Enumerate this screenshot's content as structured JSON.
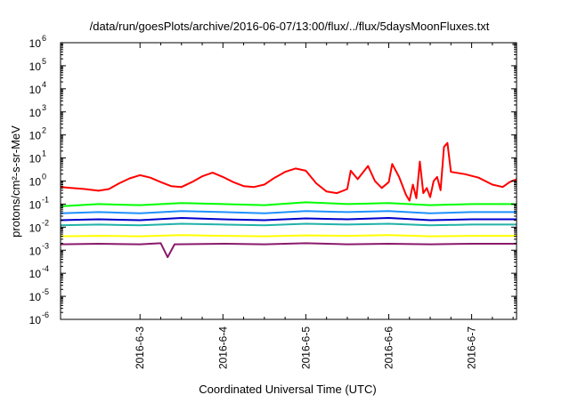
{
  "chart_data": {
    "type": "line",
    "title": "/data/run/goesPlots/archive/2016-06-07/13:00/flux/../flux/5daysMoonFluxes.txt",
    "xlabel": "Coordinated Universal Time (UTC)",
    "ylabel": "protons/cm²-s-sr-MeV",
    "yscale": "log",
    "ylim": [
      1e-06,
      1000000.0
    ],
    "xlim": [
      "2016-06-02 01:00",
      "2016-06-07 13:00"
    ],
    "grid": false,
    "y_ticks": [
      {
        "value": 1e-06,
        "base": "10",
        "exp": "-6"
      },
      {
        "value": 1e-05,
        "base": "10",
        "exp": "-5"
      },
      {
        "value": 0.0001,
        "base": "10",
        "exp": "-4"
      },
      {
        "value": 0.001,
        "base": "10",
        "exp": "-3"
      },
      {
        "value": 0.01,
        "base": "10",
        "exp": "-2"
      },
      {
        "value": 0.1,
        "base": "10",
        "exp": "-1"
      },
      {
        "value": 1,
        "base": "10",
        "exp": "0"
      },
      {
        "value": 10,
        "base": "10",
        "exp": "1"
      },
      {
        "value": 100,
        "base": "10",
        "exp": "2"
      },
      {
        "value": 1000,
        "base": "10",
        "exp": "3"
      },
      {
        "value": 10000,
        "base": "10",
        "exp": "4"
      },
      {
        "value": 100000,
        "base": "10",
        "exp": "5"
      },
      {
        "value": 1000000,
        "base": "10",
        "exp": "6"
      }
    ],
    "x_ticks": [
      "2016-6-3",
      "2016-6-4",
      "2016-6-5",
      "2016-6-6",
      "2016-6-7"
    ],
    "series": [
      {
        "color": "#ff0000",
        "points": [
          [
            "2016-06-02 01:00",
            0.55
          ],
          [
            "2016-06-02 04:00",
            0.5
          ],
          [
            "2016-06-02 08:00",
            0.45
          ],
          [
            "2016-06-02 12:00",
            0.38
          ],
          [
            "2016-06-02 15:00",
            0.45
          ],
          [
            "2016-06-02 18:00",
            0.8
          ],
          [
            "2016-06-02 21:00",
            1.3
          ],
          [
            "2016-06-03 00:00",
            1.8
          ],
          [
            "2016-06-03 03:00",
            1.4
          ],
          [
            "2016-06-03 06:00",
            0.9
          ],
          [
            "2016-06-03 09:00",
            0.6
          ],
          [
            "2016-06-03 12:00",
            0.55
          ],
          [
            "2016-06-03 15:00",
            0.9
          ],
          [
            "2016-06-03 18:00",
            1.6
          ],
          [
            "2016-06-03 21:00",
            2.3
          ],
          [
            "2016-06-04 00:00",
            1.5
          ],
          [
            "2016-06-04 03:00",
            0.9
          ],
          [
            "2016-06-04 06:00",
            0.6
          ],
          [
            "2016-06-04 09:00",
            0.55
          ],
          [
            "2016-06-04 12:00",
            0.7
          ],
          [
            "2016-06-04 15:00",
            1.4
          ],
          [
            "2016-06-04 18:00",
            2.5
          ],
          [
            "2016-06-04 21:00",
            3.5
          ],
          [
            "2016-06-05 00:00",
            2.8
          ],
          [
            "2016-06-05 03:00",
            0.8
          ],
          [
            "2016-06-05 06:00",
            0.35
          ],
          [
            "2016-06-05 09:00",
            0.3
          ],
          [
            "2016-06-05 12:00",
            0.45
          ],
          [
            "2016-06-05 13:00",
            2.8
          ],
          [
            "2016-06-05 15:00",
            1.2
          ],
          [
            "2016-06-05 18:00",
            4.5
          ],
          [
            "2016-06-05 20:00",
            1.0
          ],
          [
            "2016-06-05 22:00",
            0.5
          ],
          [
            "2016-06-06 00:00",
            0.9
          ],
          [
            "2016-06-06 01:00",
            5.5
          ],
          [
            "2016-06-06 03:00",
            1.5
          ],
          [
            "2016-06-06 05:00",
            0.25
          ],
          [
            "2016-06-06 06:00",
            0.14
          ],
          [
            "2016-06-06 07:00",
            0.7
          ],
          [
            "2016-06-06 08:00",
            0.18
          ],
          [
            "2016-06-06 09:00",
            7.0
          ],
          [
            "2016-06-06 10:00",
            0.3
          ],
          [
            "2016-06-06 11:00",
            0.5
          ],
          [
            "2016-06-06 12:00",
            0.2
          ],
          [
            "2016-06-06 13:00",
            1.0
          ],
          [
            "2016-06-06 14:00",
            1.5
          ],
          [
            "2016-06-06 15:00",
            0.4
          ],
          [
            "2016-06-06 16:00",
            30
          ],
          [
            "2016-06-06 17:00",
            45
          ],
          [
            "2016-06-06 18:00",
            2.5
          ],
          [
            "2016-06-06 22:00",
            2.0
          ],
          [
            "2016-06-07 02:00",
            1.4
          ],
          [
            "2016-06-07 06:00",
            0.7
          ],
          [
            "2016-06-07 09:00",
            0.55
          ],
          [
            "2016-06-07 11:00",
            0.9
          ],
          [
            "2016-06-07 13:00",
            1.2
          ]
        ]
      },
      {
        "color": "#00ff00",
        "points": [
          [
            "2016-06-02 01:00",
            0.08
          ],
          [
            "2016-06-02 12:00",
            0.1
          ],
          [
            "2016-06-03 00:00",
            0.09
          ],
          [
            "2016-06-03 12:00",
            0.11
          ],
          [
            "2016-06-04 00:00",
            0.1
          ],
          [
            "2016-06-04 12:00",
            0.09
          ],
          [
            "2016-06-05 00:00",
            0.12
          ],
          [
            "2016-06-05 12:00",
            0.1
          ],
          [
            "2016-06-06 00:00",
            0.11
          ],
          [
            "2016-06-06 12:00",
            0.09
          ],
          [
            "2016-06-07 00:00",
            0.1
          ],
          [
            "2016-06-07 13:00",
            0.1
          ]
        ]
      },
      {
        "color": "#1e90ff",
        "points": [
          [
            "2016-06-02 01:00",
            0.04
          ],
          [
            "2016-06-02 12:00",
            0.045
          ],
          [
            "2016-06-03 00:00",
            0.04
          ],
          [
            "2016-06-03 12:00",
            0.05
          ],
          [
            "2016-06-04 00:00",
            0.045
          ],
          [
            "2016-06-04 12:00",
            0.04
          ],
          [
            "2016-06-05 00:00",
            0.05
          ],
          [
            "2016-06-05 12:00",
            0.045
          ],
          [
            "2016-06-06 00:00",
            0.05
          ],
          [
            "2016-06-06 12:00",
            0.04
          ],
          [
            "2016-06-07 00:00",
            0.045
          ],
          [
            "2016-06-07 13:00",
            0.045
          ]
        ]
      },
      {
        "color": "#0000cd",
        "points": [
          [
            "2016-06-02 01:00",
            0.02
          ],
          [
            "2016-06-02 12:00",
            0.022
          ],
          [
            "2016-06-03 00:00",
            0.02
          ],
          [
            "2016-06-03 12:00",
            0.025
          ],
          [
            "2016-06-04 00:00",
            0.022
          ],
          [
            "2016-06-04 12:00",
            0.02
          ],
          [
            "2016-06-05 00:00",
            0.024
          ],
          [
            "2016-06-05 12:00",
            0.022
          ],
          [
            "2016-06-06 00:00",
            0.025
          ],
          [
            "2016-06-06 12:00",
            0.02
          ],
          [
            "2016-06-07 00:00",
            0.022
          ],
          [
            "2016-06-07 13:00",
            0.022
          ]
        ]
      },
      {
        "color": "#20b2aa",
        "points": [
          [
            "2016-06-02 01:00",
            0.012
          ],
          [
            "2016-06-02 12:00",
            0.013
          ],
          [
            "2016-06-03 00:00",
            0.012
          ],
          [
            "2016-06-03 12:00",
            0.014
          ],
          [
            "2016-06-04 00:00",
            0.013
          ],
          [
            "2016-06-04 12:00",
            0.012
          ],
          [
            "2016-06-05 00:00",
            0.014
          ],
          [
            "2016-06-05 12:00",
            0.013
          ],
          [
            "2016-06-06 00:00",
            0.014
          ],
          [
            "2016-06-06 12:00",
            0.012
          ],
          [
            "2016-06-07 00:00",
            0.013
          ],
          [
            "2016-06-07 13:00",
            0.013
          ]
        ]
      },
      {
        "color": "#ffff00",
        "points": [
          [
            "2016-06-02 01:00",
            0.004
          ],
          [
            "2016-06-02 12:00",
            0.0042
          ],
          [
            "2016-06-03 00:00",
            0.004
          ],
          [
            "2016-06-03 12:00",
            0.0045
          ],
          [
            "2016-06-04 00:00",
            0.0042
          ],
          [
            "2016-06-04 12:00",
            0.004
          ],
          [
            "2016-06-05 00:00",
            0.0044
          ],
          [
            "2016-06-05 12:00",
            0.0042
          ],
          [
            "2016-06-06 00:00",
            0.0045
          ],
          [
            "2016-06-06 12:00",
            0.004
          ],
          [
            "2016-06-07 00:00",
            0.0042
          ],
          [
            "2016-06-07 13:00",
            0.0042
          ]
        ]
      },
      {
        "color": "#8b1a6b",
        "points": [
          [
            "2016-06-02 01:00",
            0.0018
          ],
          [
            "2016-06-02 12:00",
            0.0019
          ],
          [
            "2016-06-03 00:00",
            0.0018
          ],
          [
            "2016-06-03 06:00",
            0.002
          ],
          [
            "2016-06-03 08:00",
            0.0005
          ],
          [
            "2016-06-03 10:00",
            0.0018
          ],
          [
            "2016-06-04 00:00",
            0.0019
          ],
          [
            "2016-06-04 12:00",
            0.0018
          ],
          [
            "2016-06-05 00:00",
            0.002
          ],
          [
            "2016-06-05 12:00",
            0.0018
          ],
          [
            "2016-06-06 00:00",
            0.0019
          ],
          [
            "2016-06-06 12:00",
            0.0018
          ],
          [
            "2016-06-07 00:00",
            0.0019
          ],
          [
            "2016-06-07 13:00",
            0.0019
          ]
        ]
      }
    ]
  }
}
